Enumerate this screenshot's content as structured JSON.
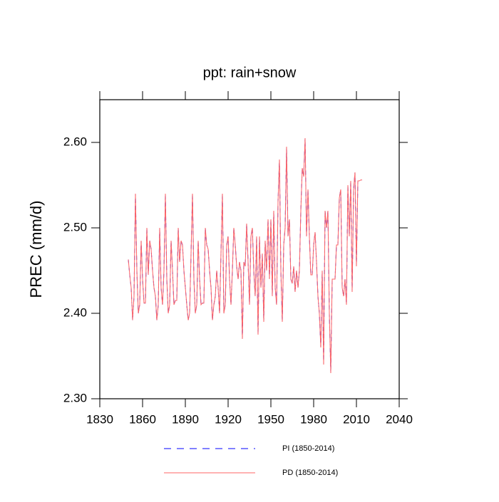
{
  "chart_data": {
    "type": "line",
    "title": "ppt: rain+snow",
    "y_label": "PREC  (mm/d)",
    "x": [
      1850,
      1851,
      1852,
      1853,
      1854,
      1855,
      1856,
      1857,
      1858,
      1859,
      1860,
      1861,
      1862,
      1863,
      1864,
      1865,
      1866,
      1867,
      1868,
      1869,
      1870,
      1871,
      1872,
      1873,
      1874,
      1875,
      1876,
      1877,
      1878,
      1879,
      1880,
      1881,
      1882,
      1883,
      1884,
      1885,
      1886,
      1887,
      1888,
      1889,
      1890,
      1891,
      1892,
      1893,
      1894,
      1895,
      1896,
      1897,
      1898,
      1899,
      1900,
      1901,
      1902,
      1903,
      1904,
      1905,
      1906,
      1907,
      1908,
      1909,
      1910,
      1911,
      1912,
      1913,
      1914,
      1915,
      1916,
      1917,
      1918,
      1919,
      1920,
      1921,
      1922,
      1923,
      1924,
      1925,
      1926,
      1927,
      1928,
      1929,
      1930,
      1931,
      1932,
      1933,
      1934,
      1935,
      1936,
      1937,
      1938,
      1939,
      1940,
      1941,
      1942,
      1943,
      1944,
      1945,
      1946,
      1947,
      1948,
      1949,
      1950,
      1951,
      1952,
      1953,
      1954,
      1955,
      1956,
      1957,
      1958,
      1959,
      1960,
      1961,
      1962,
      1963,
      1964,
      1965,
      1966,
      1967,
      1968,
      1969,
      1970,
      1971,
      1972,
      1973,
      1974,
      1975,
      1976,
      1977,
      1978,
      1979,
      1980,
      1981,
      1982,
      1983,
      1984,
      1985,
      1986,
      1987,
      1988,
      1989,
      1990,
      1991,
      1992,
      1993,
      1994,
      1995,
      1996,
      1997,
      1998,
      1999,
      2000,
      2001,
      2002,
      2003,
      2004,
      2005,
      2006,
      2007,
      2008,
      2009,
      2010,
      2011,
      2012,
      2013,
      2014
    ],
    "series": [
      {
        "name": "PI (1850-2014)",
        "color": "#0000ff",
        "line_style": "dashed",
        "values": [
          2.463,
          2.445,
          2.43,
          2.392,
          2.42,
          2.54,
          2.45,
          2.4,
          2.41,
          2.485,
          2.44,
          2.412,
          2.412,
          2.5,
          2.445,
          2.485,
          2.475,
          2.45,
          2.43,
          2.42,
          2.392,
          2.41,
          2.5,
          2.43,
          2.41,
          2.45,
          2.54,
          2.44,
          2.4,
          2.41,
          2.485,
          2.45,
          2.41,
          2.415,
          2.415,
          2.5,
          2.46,
          2.485,
          2.48,
          2.45,
          2.43,
          2.41,
          2.392,
          2.4,
          2.47,
          2.54,
          2.44,
          2.4,
          2.41,
          2.485,
          2.44,
          2.41,
          2.412,
          2.412,
          2.5,
          2.48,
          2.475,
          2.45,
          2.43,
          2.392,
          2.41,
          2.42,
          2.45,
          2.43,
          2.4,
          2.47,
          2.54,
          2.4,
          2.41,
          2.48,
          2.49,
          2.44,
          2.41,
          2.45,
          2.5,
          2.48,
          2.455,
          2.44,
          2.46,
          2.45,
          2.37,
          2.46,
          2.455,
          2.505,
          2.46,
          2.41,
          2.49,
          2.5,
          2.45,
          2.42,
          2.49,
          2.375,
          2.49,
          2.43,
          2.47,
          2.39,
          2.485,
          2.45,
          2.51,
          2.44,
          2.51,
          2.42,
          2.52,
          2.43,
          2.41,
          2.53,
          2.58,
          2.45,
          2.39,
          2.48,
          2.5,
          2.595,
          2.49,
          2.51,
          2.44,
          2.435,
          2.455,
          2.425,
          2.45,
          2.43,
          2.45,
          2.52,
          2.57,
          2.56,
          2.605,
          2.49,
          2.545,
          2.49,
          2.445,
          2.445,
          2.48,
          2.495,
          2.46,
          2.42,
          2.4,
          2.36,
          2.45,
          2.34,
          2.52,
          2.5,
          2.52,
          2.4,
          2.33,
          2.44,
          2.44,
          2.44,
          2.48,
          2.48,
          2.535,
          2.545,
          2.43,
          2.42,
          2.44,
          2.41,
          2.55,
          2.49,
          2.555,
          2.425,
          2.545,
          2.565,
          2.455,
          2.555,
          2.555,
          2.556,
          2.556
        ]
      },
      {
        "name": "PD (1850-2014)",
        "color": "#ff6666",
        "line_style": "solid",
        "values": [
          2.463,
          2.445,
          2.43,
          2.392,
          2.42,
          2.54,
          2.45,
          2.4,
          2.41,
          2.485,
          2.44,
          2.412,
          2.412,
          2.5,
          2.445,
          2.485,
          2.475,
          2.45,
          2.43,
          2.42,
          2.392,
          2.41,
          2.5,
          2.43,
          2.41,
          2.45,
          2.54,
          2.44,
          2.4,
          2.41,
          2.485,
          2.45,
          2.41,
          2.415,
          2.415,
          2.5,
          2.46,
          2.485,
          2.48,
          2.45,
          2.43,
          2.41,
          2.392,
          2.4,
          2.47,
          2.54,
          2.44,
          2.4,
          2.41,
          2.485,
          2.44,
          2.41,
          2.412,
          2.412,
          2.5,
          2.48,
          2.475,
          2.45,
          2.43,
          2.392,
          2.41,
          2.42,
          2.45,
          2.43,
          2.4,
          2.47,
          2.54,
          2.4,
          2.41,
          2.48,
          2.49,
          2.44,
          2.41,
          2.45,
          2.5,
          2.48,
          2.455,
          2.44,
          2.46,
          2.45,
          2.37,
          2.46,
          2.455,
          2.505,
          2.46,
          2.41,
          2.49,
          2.5,
          2.45,
          2.42,
          2.49,
          2.375,
          2.49,
          2.43,
          2.47,
          2.39,
          2.485,
          2.45,
          2.51,
          2.44,
          2.51,
          2.42,
          2.52,
          2.43,
          2.41,
          2.53,
          2.58,
          2.45,
          2.39,
          2.48,
          2.5,
          2.595,
          2.49,
          2.51,
          2.44,
          2.435,
          2.455,
          2.425,
          2.45,
          2.43,
          2.45,
          2.52,
          2.57,
          2.56,
          2.605,
          2.49,
          2.545,
          2.49,
          2.445,
          2.445,
          2.48,
          2.495,
          2.46,
          2.42,
          2.4,
          2.36,
          2.45,
          2.34,
          2.52,
          2.5,
          2.52,
          2.4,
          2.33,
          2.44,
          2.44,
          2.44,
          2.48,
          2.48,
          2.535,
          2.545,
          2.43,
          2.42,
          2.44,
          2.41,
          2.55,
          2.49,
          2.555,
          2.425,
          2.545,
          2.565,
          2.455,
          2.555,
          2.555,
          2.556,
          2.556
        ]
      }
    ],
    "xlim": [
      1830,
      2040
    ],
    "xticks": [
      1830,
      1860,
      1890,
      1920,
      1950,
      1980,
      2010,
      2040
    ],
    "ylim": [
      2.3,
      2.65
    ],
    "yticks": [
      {
        "value": 2.3,
        "label": "2.30"
      },
      {
        "value": 2.4,
        "label": "2.40"
      },
      {
        "value": 2.5,
        "label": "2.50"
      },
      {
        "value": 2.6,
        "label": "2.60"
      }
    ],
    "legend": "bottom"
  }
}
